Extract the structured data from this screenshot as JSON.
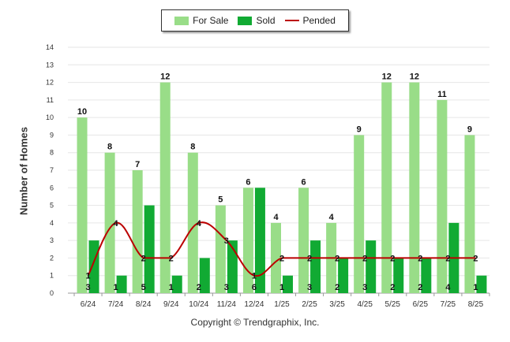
{
  "legend": {
    "for_sale": "For Sale",
    "sold": "Sold",
    "pended": "Pended"
  },
  "footer": {
    "copyright": "Copyright © Trendgraphix, Inc."
  },
  "colors": {
    "for_sale": "#99dd88",
    "sold": "#11aa33",
    "pended": "#bb0000",
    "grid": "#e6e6e6"
  },
  "chart_data": {
    "type": "bar",
    "ylabel": "Number of Homes",
    "ylim": [
      0,
      14
    ],
    "yticks": [
      0,
      1,
      2,
      3,
      4,
      5,
      6,
      7,
      8,
      9,
      10,
      11,
      12,
      13,
      14
    ],
    "grid": true,
    "legend_position": "top-center",
    "categories": [
      "6/24",
      "7/24",
      "8/24",
      "9/24",
      "10/24",
      "11/24",
      "12/24",
      "1/25",
      "2/25",
      "3/25",
      "4/25",
      "5/25",
      "6/25",
      "7/25",
      "8/25"
    ],
    "series": [
      {
        "name": "For Sale",
        "type": "bar",
        "values": [
          10,
          8,
          7,
          12,
          8,
          5,
          6,
          4,
          6,
          4,
          9,
          12,
          12,
          11,
          9
        ]
      },
      {
        "name": "Sold",
        "type": "bar",
        "values": [
          3,
          1,
          5,
          1,
          2,
          3,
          6,
          1,
          3,
          2,
          3,
          2,
          2,
          4,
          1
        ]
      },
      {
        "name": "Pended",
        "type": "line",
        "values": [
          1,
          4,
          2,
          2,
          4,
          3,
          1,
          2,
          2,
          2,
          2,
          2,
          2,
          2,
          2
        ]
      }
    ]
  }
}
